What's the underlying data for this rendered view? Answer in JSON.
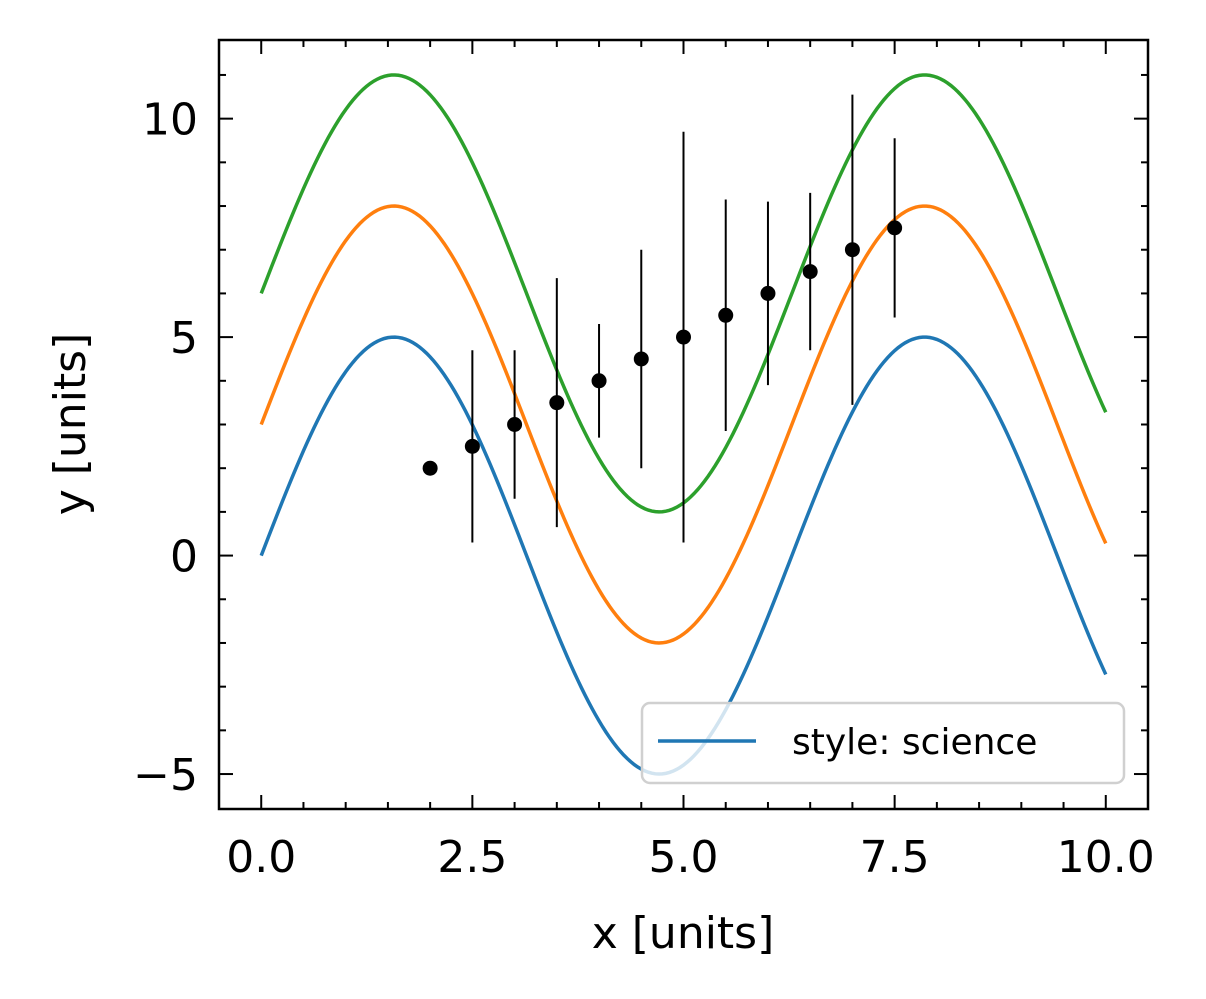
{
  "chart_data": {
    "type": "line",
    "xlabel": "x [units]",
    "ylabel": "y [units]",
    "xlim": [
      -0.5,
      10.5
    ],
    "ylim": [
      -5.8,
      11.8
    ],
    "xticks": [
      0.0,
      2.5,
      5.0,
      7.5,
      10.0
    ],
    "xtick_labels": [
      "0.0",
      "2.5",
      "5.0",
      "7.5",
      "10.0"
    ],
    "xminor": [
      0.5,
      1.0,
      1.5,
      2.0,
      3.0,
      3.5,
      4.0,
      4.5,
      5.5,
      6.0,
      6.5,
      7.0,
      8.0,
      8.5,
      9.0,
      9.5
    ],
    "yticks": [
      -5,
      0,
      5,
      10
    ],
    "ytick_labels": [
      "−5",
      "0",
      "5",
      "10"
    ],
    "yminor": [
      -4,
      -3,
      -2,
      -1,
      1,
      2,
      3,
      4,
      6,
      7,
      8,
      9,
      11
    ],
    "grid": false,
    "legend_position": "lower-right",
    "series": [
      {
        "name": "style: science",
        "color": "#1f77b4",
        "function": "sin",
        "offset": 0,
        "amplitude": 5,
        "x_range": [
          0,
          10
        ]
      },
      {
        "color": "#ff7f0e",
        "function": "sin",
        "offset": 3,
        "amplitude": 5,
        "x_range": [
          0,
          10
        ]
      },
      {
        "color": "#2ca02c",
        "function": "sin",
        "offset": 6,
        "amplitude": 5,
        "x_range": [
          0,
          10
        ]
      }
    ],
    "errorbar_series": {
      "color": "#000000",
      "x": [
        2.0,
        2.5,
        3.0,
        3.5,
        4.0,
        4.5,
        5.0,
        5.5,
        6.0,
        6.5,
        7.0,
        7.5
      ],
      "y": [
        2.0,
        2.5,
        3.0,
        3.5,
        4.0,
        4.5,
        5.0,
        5.5,
        6.0,
        6.5,
        7.0,
        7.5
      ],
      "yerr": [
        0.0,
        2.2,
        1.7,
        2.85,
        1.3,
        2.5,
        4.7,
        2.65,
        2.1,
        1.8,
        3.55,
        2.05
      ]
    }
  }
}
